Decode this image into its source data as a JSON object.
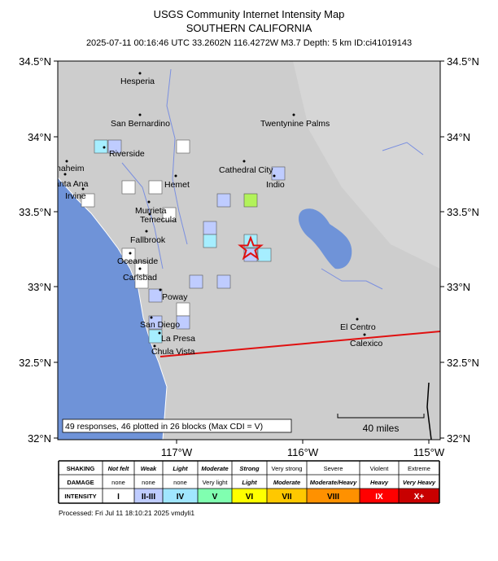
{
  "header": {
    "title": "USGS Community Internet Intensity Map",
    "subtitle": "SOUTHERN CALIFORNIA",
    "info": "2025-07-11 00:16:46 UTC 33.2602N 116.4272W M3.7 Depth: 5 km ID:ci41019143"
  },
  "map": {
    "lat_labels": [
      "34.5°N",
      "34°N",
      "33.5°N",
      "33°N",
      "32.5°N",
      "32°N"
    ],
    "lon_labels": [
      "117°W",
      "116°W",
      "115°W"
    ],
    "cities": [
      "Hesperia",
      "San Bernardino",
      "Twentynine Palms",
      "Riverside",
      "Anaheim",
      "Santa Ana",
      "Irvine",
      "Cathedral City",
      "Indio",
      "Hemet",
      "Murrieta",
      "Temecula",
      "Fallbrook",
      "Oceanside",
      "Carlsbad",
      "Poway",
      "San Diego",
      "La Presa",
      "Chula Vista",
      "El Centro",
      "Calexico"
    ],
    "note": "49 responses, 46 plotted in 26 blocks (Max CDI = V)",
    "scale_bar": "40 miles"
  },
  "legend": {
    "row_headers": [
      "SHAKING",
      "DAMAGE",
      "INTENSITY"
    ],
    "shaking": [
      "Not felt",
      "Weak",
      "Light",
      "Moderate",
      "Strong",
      "Very strong",
      "Severe",
      "Violent",
      "Extreme"
    ],
    "damage": [
      "none",
      "none",
      "none",
      "Very light",
      "Light",
      "Moderate",
      "Moderate/Heavy",
      "Heavy",
      "Very Heavy"
    ],
    "intensity": [
      "I",
      "II-III",
      "IV",
      "V",
      "VI",
      "VII",
      "VIII",
      "IX",
      "X+"
    ]
  },
  "footer": "Processed: Fri Jul 11 18:10:21 2025 vmdyli1"
}
